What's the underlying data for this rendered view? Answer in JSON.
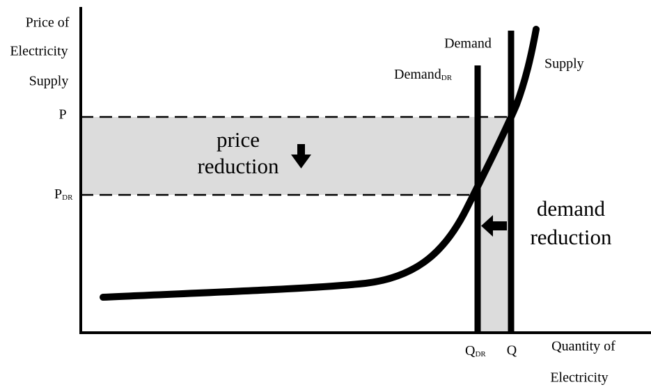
{
  "y_axis_label": [
    "Price of",
    "Electricity",
    "Supply"
  ],
  "x_axis_label": [
    "Quantity of",
    "Electricity"
  ],
  "price_levels": [
    {
      "label": "P"
    },
    {
      "label": "P",
      "subscript": "DR"
    }
  ],
  "quantity_levels": [
    {
      "label": "Q",
      "subscript": "DR"
    },
    {
      "label": "Q"
    }
  ],
  "curves": [
    {
      "label": "Demand"
    },
    {
      "label": "Demand",
      "subscript": "DR"
    },
    {
      "label": "Supply"
    }
  ],
  "annotations": {
    "price_reduction": [
      "price",
      "reduction"
    ],
    "demand_reduction": [
      "demand",
      "reduction"
    ]
  }
}
